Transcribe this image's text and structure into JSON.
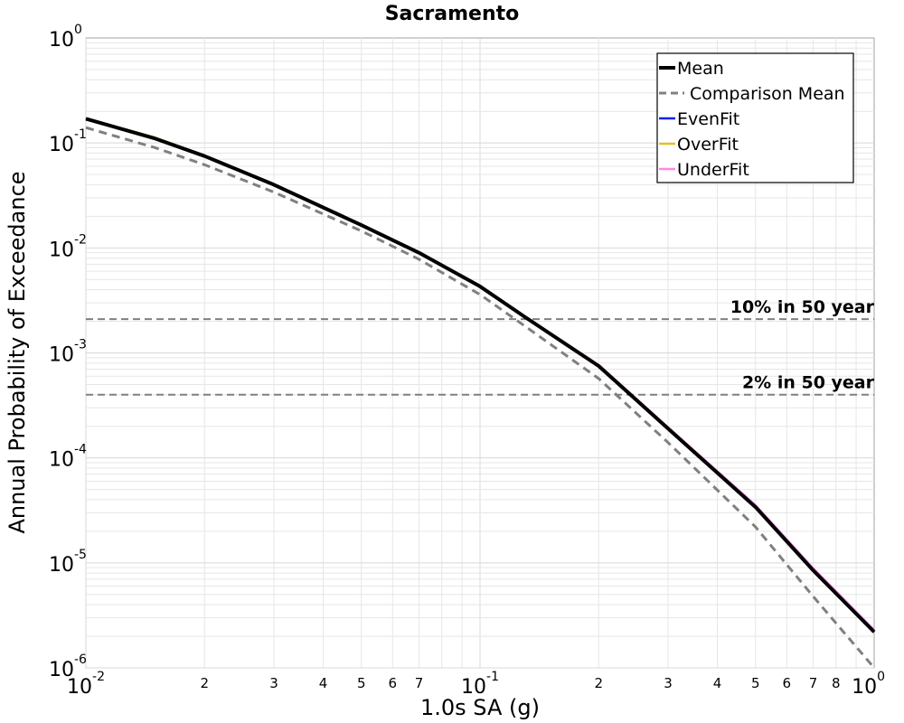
{
  "chart_data": {
    "type": "line",
    "title": "Sacramento",
    "xlabel": "1.0s SA (g)",
    "ylabel": "Annual Probability of Exceedance",
    "x_scale": "log",
    "y_scale": "log",
    "xlim": [
      0.01,
      1
    ],
    "ylim": [
      1e-06,
      1
    ],
    "grid": true,
    "legend_position": "top-right",
    "x_ticks": [
      {
        "value": 0.01,
        "base": "10",
        "exp": "-2"
      },
      {
        "value": 0.1,
        "base": "10",
        "exp": "-1"
      },
      {
        "value": 1,
        "base": "10",
        "exp": "0"
      }
    ],
    "x_minor_ticks": [
      {
        "value": 0.02,
        "label": "2"
      },
      {
        "value": 0.03,
        "label": "3"
      },
      {
        "value": 0.04,
        "label": "4"
      },
      {
        "value": 0.05,
        "label": "5"
      },
      {
        "value": 0.06,
        "label": "6"
      },
      {
        "value": 0.07,
        "label": "7"
      },
      {
        "value": 0.2,
        "label": "2"
      },
      {
        "value": 0.3,
        "label": "3"
      },
      {
        "value": 0.4,
        "label": "4"
      },
      {
        "value": 0.5,
        "label": "5"
      },
      {
        "value": 0.6,
        "label": "6"
      },
      {
        "value": 0.7,
        "label": "7"
      },
      {
        "value": 0.8,
        "label": "8"
      }
    ],
    "y_ticks": [
      {
        "value": 1,
        "base": "10",
        "exp": "0"
      },
      {
        "value": 0.1,
        "base": "10",
        "exp": "-1"
      },
      {
        "value": 0.01,
        "base": "10",
        "exp": "-2"
      },
      {
        "value": 0.001,
        "base": "10",
        "exp": "-3"
      },
      {
        "value": 0.0001,
        "base": "10",
        "exp": "-4"
      },
      {
        "value": 1e-05,
        "base": "10",
        "exp": "-5"
      },
      {
        "value": 1e-06,
        "base": "10",
        "exp": "-6"
      }
    ],
    "x": [
      0.01,
      0.015,
      0.02,
      0.03,
      0.05,
      0.07,
      0.1,
      0.13,
      0.2,
      0.3,
      0.5,
      0.7,
      1.0
    ],
    "series": [
      {
        "name": "Mean",
        "color": "#000000",
        "style": "solid",
        "values": [
          0.17,
          0.11,
          0.075,
          0.04,
          0.0165,
          0.009,
          0.0043,
          0.0022,
          0.00075,
          0.00019,
          3.4e-05,
          8.5e-06,
          2.2e-06
        ]
      },
      {
        "name": "Comparison Mean",
        "color": "#808080",
        "style": "dashed",
        "values": [
          0.14,
          0.09,
          0.062,
          0.034,
          0.0145,
          0.0078,
          0.0036,
          0.0018,
          0.00057,
          0.00014,
          2.2e-05,
          4.8e-06,
          1e-06
        ]
      },
      {
        "name": "EvenFit",
        "color": "#0022ee",
        "style": "solid",
        "values": [
          0.17,
          0.11,
          0.075,
          0.04,
          0.0165,
          0.009,
          0.0043,
          0.0022,
          0.00075,
          0.00019,
          3.4e-05,
          8.5e-06,
          2.2e-06
        ]
      },
      {
        "name": "OverFit",
        "color": "#e8c020",
        "style": "solid",
        "values": [
          0.172,
          0.112,
          0.076,
          0.0405,
          0.0167,
          0.0091,
          0.00435,
          0.00222,
          0.00076,
          0.00019,
          3.4e-05,
          8.5e-06,
          2.2e-06
        ]
      },
      {
        "name": "UnderFit",
        "color": "#ff88e6",
        "style": "solid",
        "values": [
          0.17,
          0.11,
          0.075,
          0.04,
          0.0165,
          0.009,
          0.0043,
          0.0022,
          0.00077,
          0.000195,
          3.55e-05,
          8.9e-06,
          2.3e-06
        ]
      }
    ],
    "reference_lines": [
      {
        "label": "10% in 50 year",
        "y": 0.0021,
        "color": "#808080"
      },
      {
        "label": "2% in 50 year",
        "y": 0.0004,
        "color": "#808080"
      }
    ]
  }
}
